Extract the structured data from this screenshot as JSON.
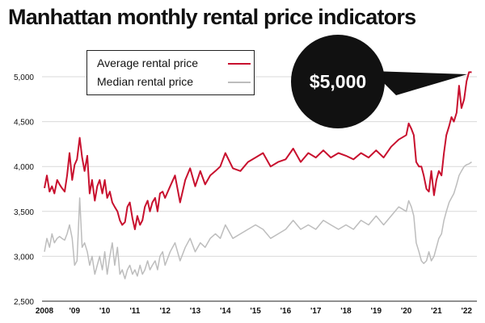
{
  "title": "Manhattan monthly rental price indicators",
  "callout": "$5,000",
  "colors": {
    "average": "#c8102e",
    "median": "#bdbdbd",
    "callout_bg": "#111111"
  },
  "chart_data": {
    "type": "line",
    "title": "Manhattan monthly rental price indicators",
    "xlabel": "",
    "ylabel": "",
    "ylim": [
      2500,
      5250
    ],
    "xlim": [
      2008,
      2022.25
    ],
    "y_ticks": [
      "2,500",
      "3,000",
      "3,500",
      "4,000",
      "4,500",
      "5,000"
    ],
    "y_tick_values": [
      2500,
      3000,
      3500,
      4000,
      4500,
      5000
    ],
    "x_ticks": [
      "2008",
      "'09",
      "'10",
      "'11",
      "'12",
      "'13",
      "'14",
      "'15",
      "'16",
      "'17",
      "'18",
      "'19",
      "'20",
      "'21",
      "'22"
    ],
    "x_tick_values": [
      2008,
      2009,
      2010,
      2011,
      2012,
      2013,
      2014,
      2015,
      2016,
      2017,
      2018,
      2019,
      2020,
      2021,
      2022
    ],
    "grid": "horizontal",
    "legend": "top-left",
    "annotation": "$5,000",
    "series": [
      {
        "name": "Average rental price",
        "x": [
          2008.0,
          2008.08,
          2008.17,
          2008.25,
          2008.33,
          2008.42,
          2008.5,
          2008.58,
          2008.67,
          2008.75,
          2008.83,
          2008.92,
          2009.0,
          2009.08,
          2009.17,
          2009.25,
          2009.33,
          2009.42,
          2009.5,
          2009.58,
          2009.67,
          2009.75,
          2009.83,
          2009.92,
          2010.0,
          2010.08,
          2010.17,
          2010.25,
          2010.33,
          2010.42,
          2010.5,
          2010.58,
          2010.67,
          2010.75,
          2010.83,
          2010.92,
          2011.0,
          2011.08,
          2011.17,
          2011.25,
          2011.33,
          2011.42,
          2011.5,
          2011.58,
          2011.67,
          2011.75,
          2011.83,
          2011.92,
          2012.0,
          2012.17,
          2012.33,
          2012.5,
          2012.67,
          2012.83,
          2013.0,
          2013.17,
          2013.33,
          2013.5,
          2013.67,
          2013.83,
          2014.0,
          2014.25,
          2014.5,
          2014.75,
          2015.0,
          2015.25,
          2015.5,
          2015.75,
          2016.0,
          2016.25,
          2016.5,
          2016.75,
          2017.0,
          2017.25,
          2017.5,
          2017.75,
          2018.0,
          2018.25,
          2018.5,
          2018.75,
          2019.0,
          2019.25,
          2019.5,
          2019.75,
          2020.0,
          2020.08,
          2020.17,
          2020.25,
          2020.33,
          2020.42,
          2020.5,
          2020.58,
          2020.67,
          2020.75,
          2020.83,
          2020.92,
          2021.0,
          2021.08,
          2021.17,
          2021.25,
          2021.33,
          2021.42,
          2021.5,
          2021.58,
          2021.67,
          2021.75,
          2021.83,
          2021.92,
          2022.0,
          2022.08,
          2022.17
        ],
        "values": [
          3760,
          3900,
          3720,
          3780,
          3700,
          3850,
          3800,
          3760,
          3720,
          3900,
          4150,
          3850,
          4020,
          4080,
          4320,
          4100,
          3950,
          4120,
          3700,
          3850,
          3620,
          3780,
          3850,
          3700,
          3850,
          3650,
          3720,
          3600,
          3550,
          3500,
          3400,
          3350,
          3380,
          3550,
          3600,
          3420,
          3300,
          3450,
          3350,
          3400,
          3550,
          3620,
          3500,
          3600,
          3650,
          3500,
          3700,
          3720,
          3650,
          3780,
          3900,
          3600,
          3850,
          3980,
          3780,
          3950,
          3800,
          3900,
          3950,
          4000,
          4150,
          3980,
          3950,
          4050,
          4100,
          4150,
          4000,
          4050,
          4080,
          4200,
          4050,
          4150,
          4100,
          4180,
          4100,
          4150,
          4120,
          4080,
          4150,
          4100,
          4180,
          4100,
          4220,
          4300,
          4350,
          4480,
          4420,
          4350,
          4050,
          4000,
          4000,
          3900,
          3750,
          3720,
          3950,
          3680,
          3850,
          3950,
          3900,
          4150,
          4350,
          4450,
          4550,
          4500,
          4600,
          4900,
          4650,
          4750,
          4950,
          5050,
          5050
        ]
      },
      {
        "name": "Median rental price",
        "x": [
          2008.0,
          2008.08,
          2008.17,
          2008.25,
          2008.33,
          2008.42,
          2008.5,
          2008.58,
          2008.67,
          2008.75,
          2008.83,
          2008.92,
          2009.0,
          2009.08,
          2009.17,
          2009.25,
          2009.33,
          2009.42,
          2009.5,
          2009.58,
          2009.67,
          2009.75,
          2009.83,
          2009.92,
          2010.0,
          2010.08,
          2010.17,
          2010.25,
          2010.33,
          2010.42,
          2010.5,
          2010.58,
          2010.67,
          2010.75,
          2010.83,
          2010.92,
          2011.0,
          2011.08,
          2011.17,
          2011.25,
          2011.33,
          2011.42,
          2011.5,
          2011.58,
          2011.67,
          2011.75,
          2011.83,
          2011.92,
          2012.0,
          2012.17,
          2012.33,
          2012.5,
          2012.67,
          2012.83,
          2013.0,
          2013.17,
          2013.33,
          2013.5,
          2013.67,
          2013.83,
          2014.0,
          2014.25,
          2014.5,
          2014.75,
          2015.0,
          2015.25,
          2015.5,
          2015.75,
          2016.0,
          2016.25,
          2016.5,
          2016.75,
          2017.0,
          2017.25,
          2017.5,
          2017.75,
          2018.0,
          2018.25,
          2018.5,
          2018.75,
          2019.0,
          2019.25,
          2019.5,
          2019.75,
          2020.0,
          2020.08,
          2020.17,
          2020.25,
          2020.33,
          2020.42,
          2020.5,
          2020.58,
          2020.67,
          2020.75,
          2020.83,
          2020.92,
          2021.0,
          2021.08,
          2021.17,
          2021.25,
          2021.33,
          2021.42,
          2021.5,
          2021.58,
          2021.67,
          2021.75,
          2021.83,
          2021.92,
          2022.0,
          2022.08,
          2022.17
        ],
        "values": [
          3050,
          3200,
          3100,
          3250,
          3150,
          3200,
          3220,
          3200,
          3180,
          3250,
          3350,
          3200,
          2900,
          2950,
          3650,
          3100,
          3150,
          3050,
          2900,
          3000,
          2800,
          2900,
          3000,
          2850,
          3050,
          2800,
          3000,
          3150,
          2900,
          3100,
          2800,
          2850,
          2750,
          2850,
          2900,
          2800,
          2850,
          2780,
          2900,
          2800,
          2850,
          2950,
          2850,
          2900,
          2950,
          2850,
          3000,
          3050,
          2900,
          3050,
          3150,
          2950,
          3100,
          3200,
          3050,
          3150,
          3100,
          3200,
          3250,
          3200,
          3350,
          3200,
          3250,
          3300,
          3350,
          3300,
          3200,
          3250,
          3300,
          3400,
          3300,
          3350,
          3300,
          3400,
          3350,
          3300,
          3350,
          3300,
          3400,
          3350,
          3450,
          3350,
          3450,
          3550,
          3500,
          3620,
          3550,
          3450,
          3150,
          3050,
          2950,
          2920,
          2950,
          3050,
          2950,
          3000,
          3100,
          3200,
          3250,
          3400,
          3500,
          3600,
          3650,
          3700,
          3800,
          3900,
          3950,
          4000,
          4020,
          4030,
          4050
        ]
      }
    ]
  }
}
